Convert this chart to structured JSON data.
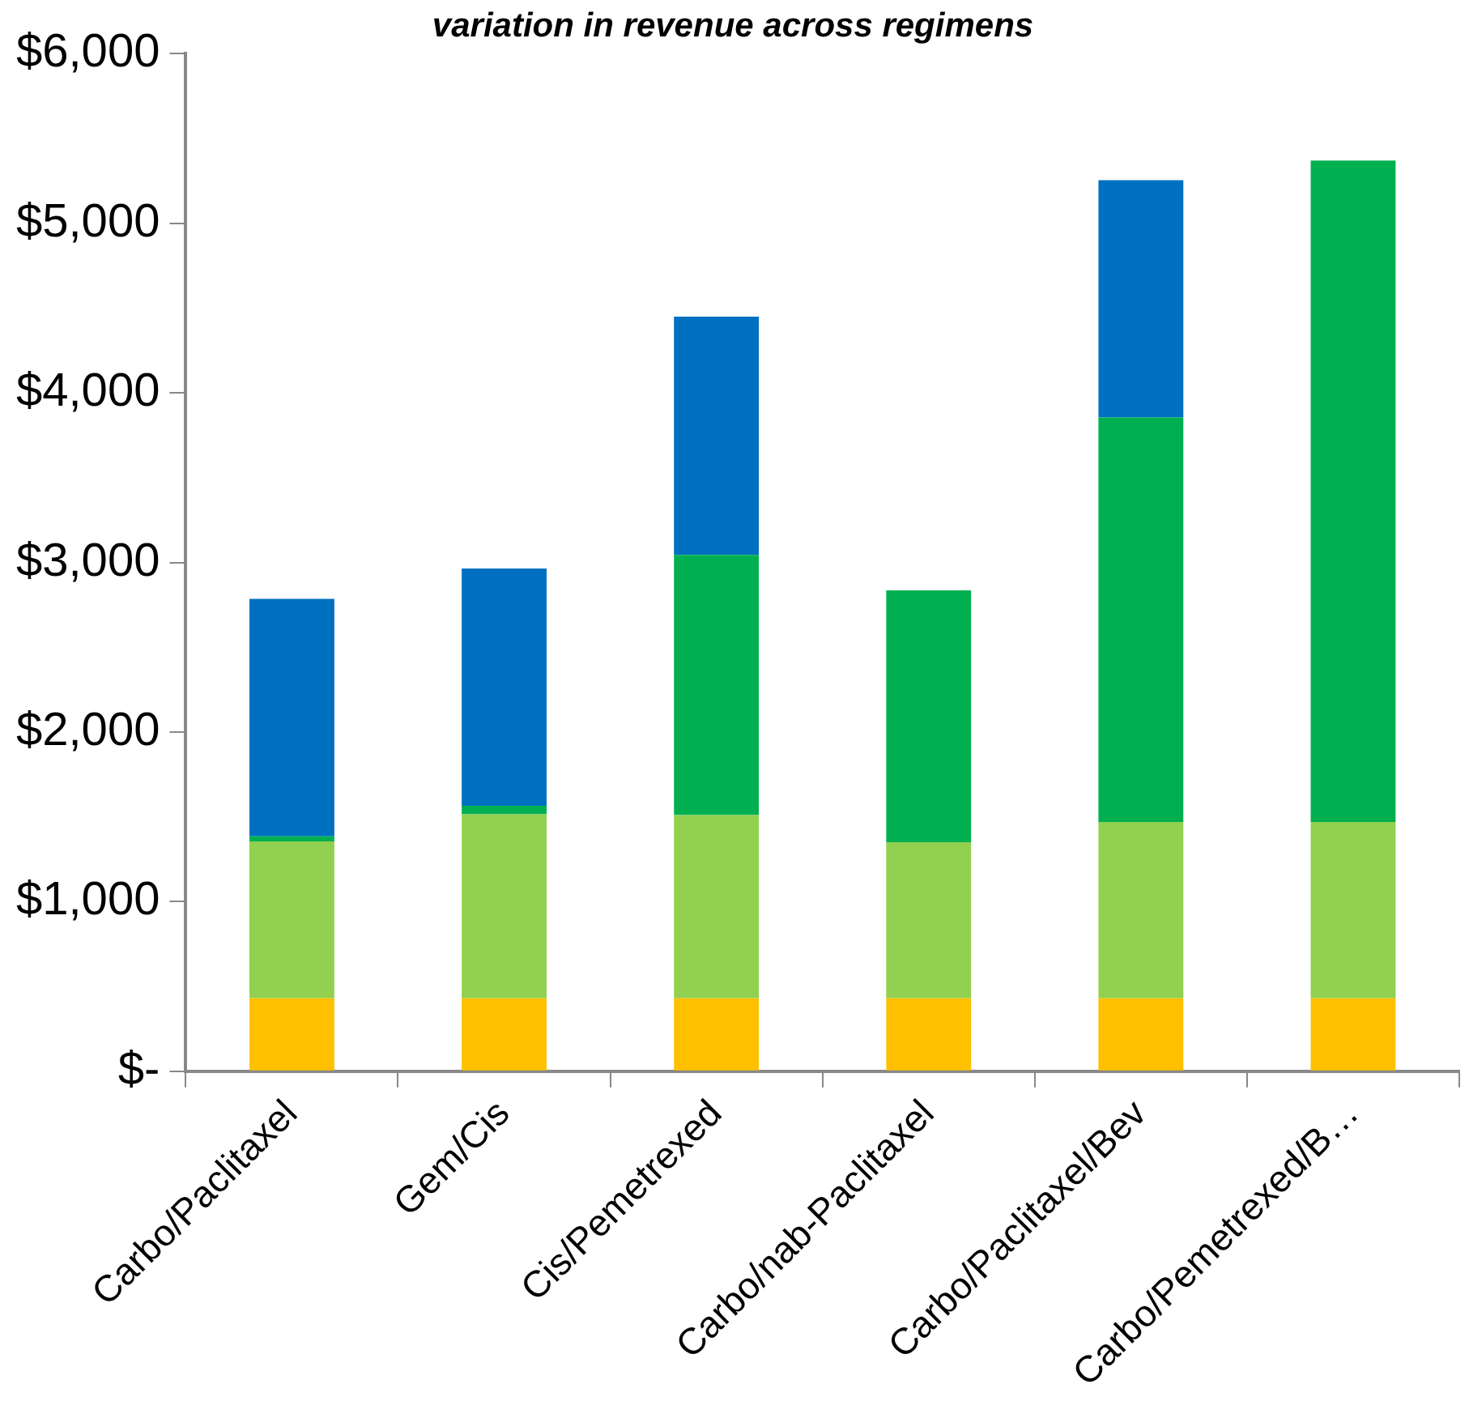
{
  "chart_data": {
    "type": "bar",
    "title": "variation in revenue across regimens",
    "stacked": true,
    "categories": [
      "Carbo/Paclitaxel",
      "Gem/Cis",
      "Cis/Pemetrexed",
      "Carbo/nab-Paclitaxel",
      "Carbo/Paclitaxel/Bev",
      "Carbo/Pemetrexed/B…"
    ],
    "series": [
      {
        "color": "#ffc000",
        "values": [
          430,
          430,
          430,
          430,
          430,
          430
        ]
      },
      {
        "color": "#92d050",
        "values": [
          925,
          1085,
          1080,
          920,
          1040,
          1040
        ]
      },
      {
        "color": "#00b050",
        "values": [
          30,
          50,
          1535,
          1485,
          2385,
          3900
        ]
      },
      {
        "color": "#0070c0",
        "values": [
          1400,
          1400,
          1405,
          null,
          1400,
          null
        ]
      }
    ],
    "ylim": [
      0,
      6000
    ],
    "yticks": [
      {
        "value": 0,
        "label": "$-"
      },
      {
        "value": 1000,
        "label": "$1,000"
      },
      {
        "value": 2000,
        "label": "$2,000"
      },
      {
        "value": 3000,
        "label": "$3,000"
      },
      {
        "value": 4000,
        "label": "$4,000"
      },
      {
        "value": 5000,
        "label": "$5,000"
      },
      {
        "value": 6000,
        "label": "$6,000"
      }
    ],
    "grid": false,
    "legend": false
  }
}
